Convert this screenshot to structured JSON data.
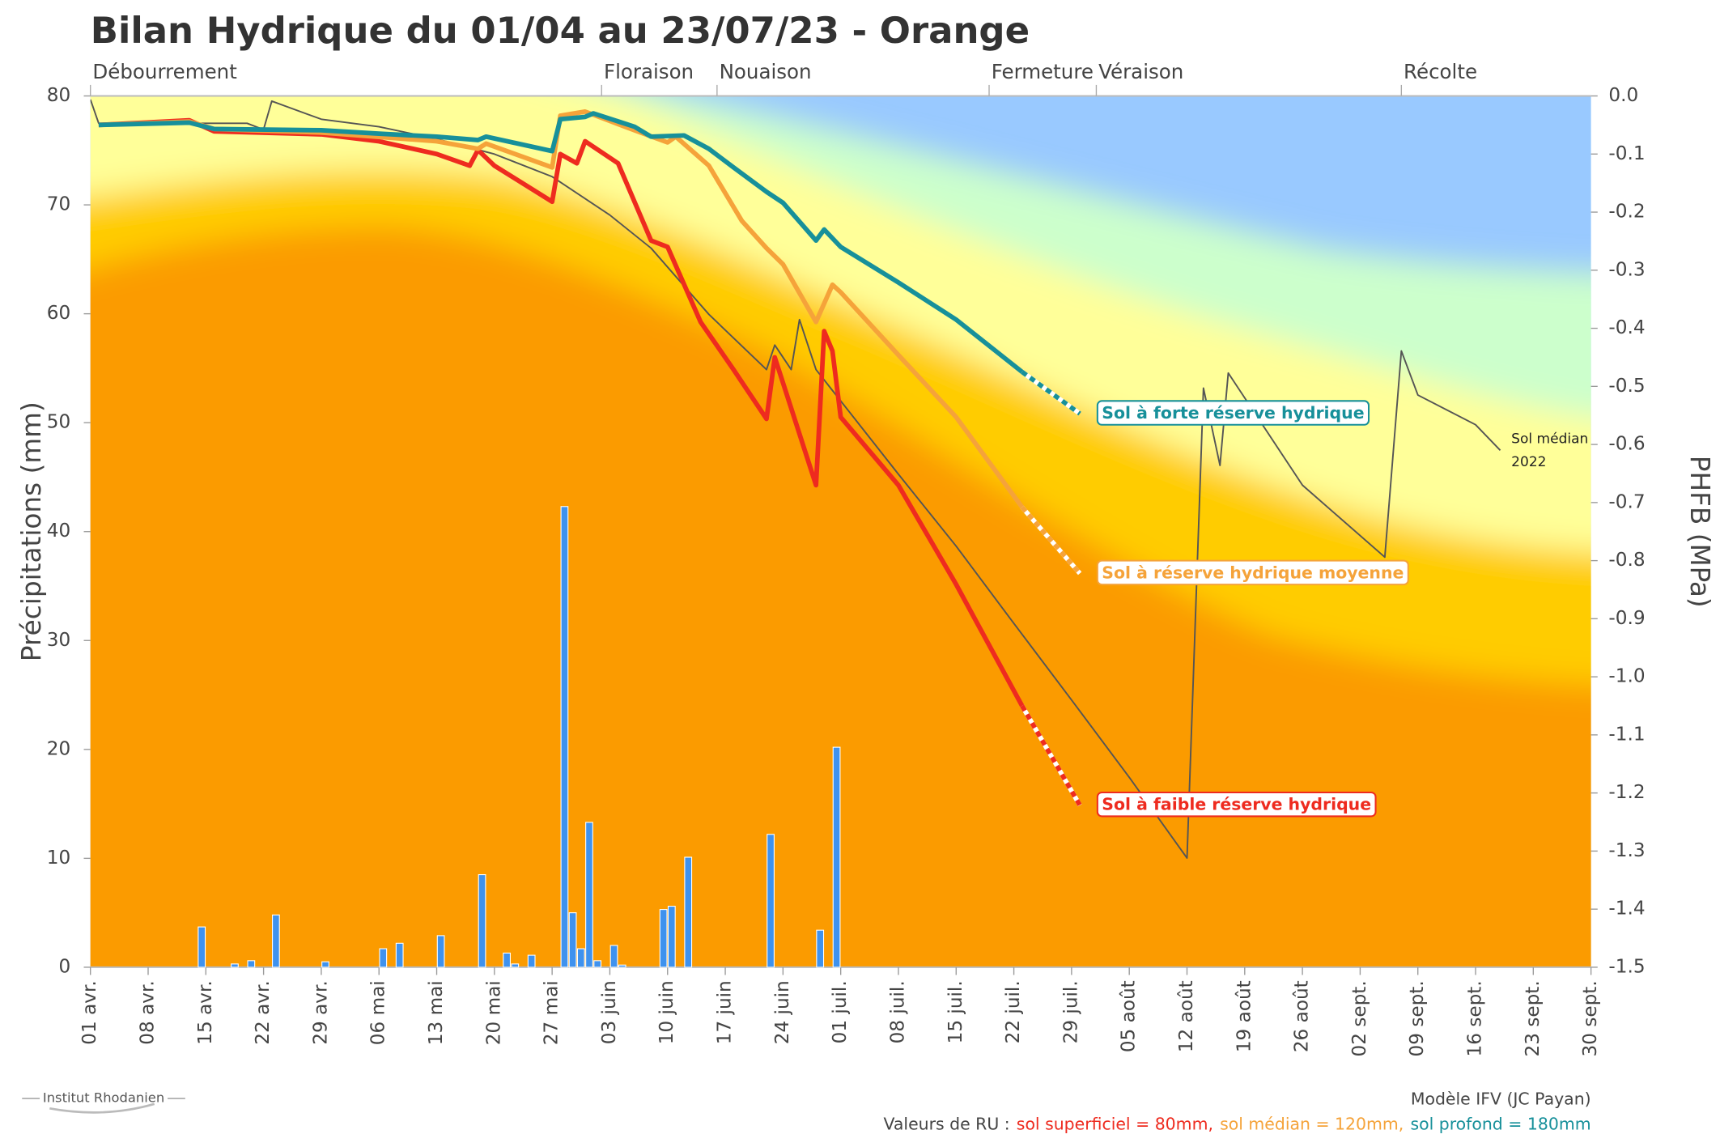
{
  "chart_data": {
    "type": "bar",
    "title": "Bilan Hydrique du 01/04 au 23/07/23 - Orange",
    "ylabel": "Précipitations (mm)",
    "y2label": "PHFB (MPa)",
    "xticks": [
      "01 avr.",
      "08 avr.",
      "15 avr.",
      "22 avr.",
      "29 avr.",
      "06 mai",
      "13 mai",
      "20 mai",
      "27 mai",
      "03 juin",
      "10 juin",
      "17 juin",
      "24 juin",
      "01 juil.",
      "08 juil.",
      "15 juil.",
      "22 juil.",
      "29 juil.",
      "05 août",
      "12 août",
      "19 août",
      "26 août",
      "02 sept.",
      "09 sept.",
      "16 sept.",
      "23 sept.",
      "30 sept."
    ],
    "xlim": [
      "01 avr.",
      "30 sept."
    ],
    "ylim": [
      0,
      80
    ],
    "yticks": [
      0,
      10,
      20,
      30,
      40,
      50,
      60,
      70,
      80
    ],
    "y2lim": [
      -1.5,
      0
    ],
    "y2ticks": [
      {
        "value": 0,
        "label": "0.0"
      },
      -0.1,
      -0.2,
      -0.3,
      -0.4,
      -0.5,
      -0.6,
      -0.7,
      -0.8,
      -0.9,
      {
        "value": -1,
        "label": "-1.0"
      },
      -1.1,
      -1.2,
      -1.3,
      -1.4,
      -1.5
    ],
    "stages": [
      {
        "label": "Débourrement",
        "x": "01 avr."
      },
      {
        "label": "Floraison",
        "x": "02 juin"
      },
      {
        "label": "Nouaison",
        "x": "16 juin"
      },
      {
        "label": "Fermeture",
        "x": "19 juil."
      },
      {
        "label": "Véraison",
        "x": "01 août"
      },
      {
        "label": "Récolte",
        "x": "07 sept."
      }
    ],
    "precipitation": {
      "color": "#3f92ee",
      "x": [
        "14 avr.",
        "18 avr.",
        "20 avr.",
        "23 avr.",
        "29 avr.",
        "06 mai",
        "08 mai",
        "13 mai",
        "18 mai",
        "21 mai",
        "22 mai",
        "24 mai",
        "28 mai",
        "29 mai",
        "30 mai",
        "31 mai",
        "01 juin",
        "03 juin",
        "04 juin",
        "09 juin",
        "10 juin",
        "12 juin",
        "22 juin",
        "28 juin",
        "30 juin"
      ],
      "values": [
        3.7,
        0.3,
        0.6,
        4.8,
        0.5,
        1.7,
        2.2,
        2.9,
        8.5,
        1.3,
        0.3,
        1.1,
        42.3,
        5.0,
        1.7,
        13.3,
        0.6,
        2.0,
        0.2,
        5.3,
        5.6,
        10.1,
        12.2,
        3.4,
        20.2
      ]
    },
    "series": [
      {
        "name": "Sol médian 2022",
        "color": "#555555",
        "axis": "y2",
        "x": [
          "01 avr.",
          "02 avr.",
          "20 avr.",
          "22 avr.",
          "23 avr.",
          "29 avr.",
          "06 mai",
          "13 mai",
          "20 mai",
          "27 mai",
          "03 juin",
          "08 juin",
          "15 juin",
          "22 juin",
          "23 juin",
          "25 juin",
          "26 juin",
          "28 juin",
          "08 juil.",
          "15 juil.",
          "22 juil.",
          "29 juil.",
          "05 août",
          "12 août",
          "14 août",
          "16 août",
          "17 août",
          "26 août",
          "05 sept.",
          "07 sept.",
          "09 sept.",
          "16 sept.",
          "19 sept."
        ],
        "values": [
          -0.006,
          -0.047,
          -0.047,
          -0.058,
          -0.009,
          -0.04,
          -0.053,
          -0.074,
          -0.1,
          -0.139,
          -0.205,
          -0.262,
          -0.376,
          -0.471,
          -0.429,
          -0.471,
          -0.385,
          -0.471,
          -0.651,
          -0.775,
          -0.908,
          -1.04,
          -1.173,
          -1.312,
          -0.503,
          -0.636,
          -0.477,
          -0.67,
          -0.794,
          -0.439,
          -0.515,
          -0.566,
          -0.61
        ]
      },
      {
        "name": "Sol à faible réserve hydrique",
        "color": "#ee2b1f",
        "axis": "y2",
        "dashed_after": "23 juil.",
        "x": [
          "02 avr.",
          "13 avr.",
          "16 avr.",
          "29 avr.",
          "06 mai",
          "13 mai",
          "17 mai",
          "18 mai",
          "20 mai",
          "27 mai",
          "28 mai",
          "30 mai",
          "31 mai",
          "04 juin",
          "08 juin",
          "10 juin",
          "14 juin",
          "18 juin",
          "22 juin",
          "23 juin",
          "28 juin",
          "29 juin",
          "30 juin",
          "01 juil.",
          "08 juil.",
          "15 juil.",
          "23 juil.",
          "30 juil."
        ],
        "values": [
          -0.05,
          -0.042,
          -0.061,
          -0.066,
          -0.078,
          -0.1,
          -0.12,
          -0.093,
          -0.12,
          -0.182,
          -0.1,
          -0.116,
          -0.078,
          -0.116,
          -0.249,
          -0.26,
          -0.389,
          -0.471,
          -0.556,
          -0.45,
          -0.67,
          -0.405,
          -0.439,
          -0.553,
          -0.67,
          -0.841,
          -1.05,
          -1.221
        ]
      },
      {
        "name": "Sol à réserve hydrique moyenne",
        "color": "#f5a33a",
        "axis": "y2",
        "dashed_after": "23 juil.",
        "x": [
          "02 avr.",
          "13 avr.",
          "16 avr.",
          "29 avr.",
          "13 mai",
          "18 mai",
          "19 mai",
          "27 mai",
          "28 mai",
          "31 mai",
          "06 juin",
          "10 juin",
          "11 juin",
          "15 juin",
          "19 juin",
          "22 juin",
          "24 juin",
          "28 juin",
          "30 juin",
          "01 juil.",
          "08 juil.",
          "15 juil.",
          "23 juil.",
          "30 juil."
        ],
        "values": [
          -0.05,
          -0.044,
          -0.057,
          -0.063,
          -0.078,
          -0.091,
          -0.082,
          -0.123,
          -0.034,
          -0.027,
          -0.059,
          -0.08,
          -0.07,
          -0.12,
          -0.215,
          -0.262,
          -0.29,
          -0.389,
          -0.325,
          -0.338,
          -0.446,
          -0.553,
          -0.708,
          -0.822
        ]
      },
      {
        "name": "Sol à forte réserve hydrique",
        "color": "#17909a",
        "axis": "y2",
        "dashed_after": "23 juil.",
        "x": [
          "02 avr.",
          "13 avr.",
          "16 avr.",
          "29 avr.",
          "06 mai",
          "13 mai",
          "18 mai",
          "19 mai",
          "27 mai",
          "28 mai",
          "31 mai",
          "01 juin",
          "06 juin",
          "08 juin",
          "12 juin",
          "15 juin",
          "18 juin",
          "22 juin",
          "24 juin",
          "28 juin",
          "29 juin",
          "01 juil.",
          "08 juil.",
          "15 juil.",
          "23 juil.",
          "30 juil."
        ],
        "values": [
          -0.05,
          -0.046,
          -0.057,
          -0.059,
          -0.065,
          -0.07,
          -0.076,
          -0.07,
          -0.095,
          -0.04,
          -0.036,
          -0.03,
          -0.053,
          -0.07,
          -0.068,
          -0.091,
          -0.123,
          -0.165,
          -0.184,
          -0.249,
          -0.23,
          -0.26,
          -0.321,
          -0.385,
          -0.475,
          -0.547
        ]
      }
    ],
    "footer": {
      "logo": "Institut Rhodanien",
      "model": "Modèle IFV (JC Payan)",
      "ru_prefix": "Valeurs de RU :",
      "ru_items": [
        {
          "text": "sol superficiel = 80mm,",
          "color": "#ee2b1f"
        },
        {
          "text": "sol médian = 120mm,",
          "color": "#f5a33a"
        },
        {
          "text": "sol profond = 180mm",
          "color": "#17909a"
        }
      ]
    }
  }
}
